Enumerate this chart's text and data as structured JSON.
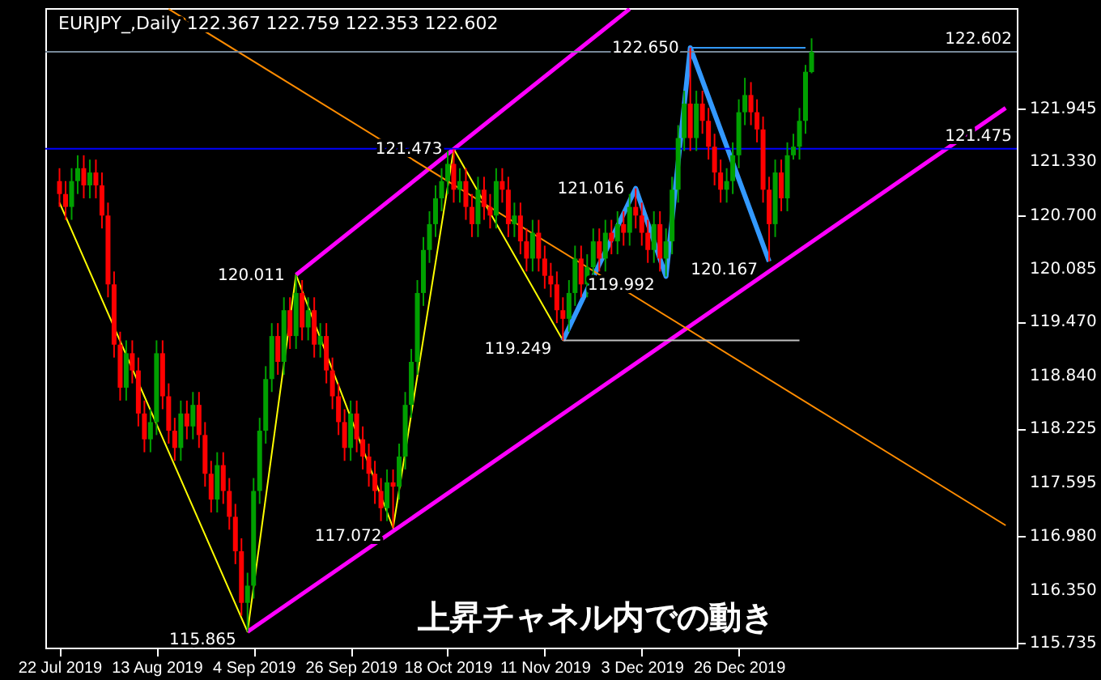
{
  "chart_data": {
    "type": "candlestick",
    "title": "EURJPY_,Daily  122.367 122.759 122.353 122.602",
    "categories": [
      "22 Jul 2019",
      null,
      null,
      null,
      null,
      null,
      null,
      null,
      null,
      null,
      null,
      null,
      null,
      null,
      null,
      null,
      "13 Aug 2019",
      null,
      null,
      null,
      null,
      null,
      null,
      null,
      null,
      null,
      null,
      null,
      null,
      null,
      null,
      null,
      "4 Sep 2019",
      null,
      null,
      null,
      null,
      null,
      null,
      null,
      null,
      null,
      null,
      null,
      null,
      null,
      null,
      null,
      "26 Sep 2019",
      null,
      null,
      null,
      null,
      null,
      null,
      null,
      null,
      null,
      null,
      null,
      null,
      null,
      null,
      null,
      "18 Oct 2019",
      null,
      null,
      null,
      null,
      null,
      null,
      null,
      null,
      null,
      null,
      null,
      null,
      null,
      null,
      null,
      "11 Nov 2019",
      null,
      null,
      null,
      null,
      null,
      null,
      null,
      null,
      null,
      null,
      null,
      null,
      null,
      null,
      null,
      "3 Dec 2019",
      null,
      null,
      null,
      null,
      null,
      null,
      null,
      null,
      null,
      null,
      null,
      null,
      null,
      null,
      null,
      "26 Dec 2019",
      null,
      null,
      null,
      null,
      null,
      null,
      null,
      null,
      null,
      null,
      null,
      null,
      null,
      null,
      null,
      null,
      null,
      null,
      null,
      null,
      null,
      null,
      null,
      null,
      null,
      null,
      null,
      null,
      null,
      null,
      null,
      null,
      null,
      null,
      null,
      null,
      null,
      null,
      null,
      null,
      null,
      null,
      null,
      null
    ],
    "ohlc": [
      [
        121.1,
        121.25,
        120.8,
        120.95
      ],
      [
        120.95,
        121.1,
        120.65,
        120.8
      ],
      [
        120.8,
        121.25,
        120.65,
        121.1
      ],
      [
        121.1,
        121.4,
        120.95,
        121.25
      ],
      [
        121.25,
        121.4,
        120.9,
        121.05
      ],
      [
        121.05,
        121.35,
        120.9,
        121.2
      ],
      [
        121.2,
        121.35,
        120.9,
        121.05
      ],
      [
        121.05,
        121.2,
        120.55,
        120.7
      ],
      [
        120.7,
        120.85,
        119.75,
        119.9
      ],
      [
        119.9,
        120.05,
        119.05,
        119.2
      ],
      [
        119.2,
        119.35,
        118.55,
        118.7
      ],
      [
        118.7,
        119.25,
        118.55,
        119.1
      ],
      [
        119.1,
        119.25,
        118.75,
        118.9
      ],
      [
        118.9,
        119.05,
        118.25,
        118.4
      ],
      [
        118.4,
        118.55,
        117.95,
        118.1
      ],
      [
        118.1,
        118.45,
        117.95,
        118.3
      ],
      [
        118.3,
        119.25,
        118.15,
        119.1
      ],
      [
        119.1,
        119.25,
        118.45,
        118.6
      ],
      [
        118.6,
        118.75,
        118.05,
        118.2
      ],
      [
        118.2,
        118.35,
        117.85,
        118.0
      ],
      [
        118.0,
        118.55,
        117.85,
        118.4
      ],
      [
        118.4,
        118.55,
        118.1,
        118.25
      ],
      [
        118.25,
        118.65,
        118.1,
        118.5
      ],
      [
        118.5,
        118.65,
        118.0,
        118.15
      ],
      [
        118.15,
        118.3,
        117.55,
        117.7
      ],
      [
        117.7,
        117.85,
        117.25,
        117.4
      ],
      [
        117.4,
        117.95,
        117.25,
        117.8
      ],
      [
        117.8,
        117.95,
        117.35,
        117.5
      ],
      [
        117.5,
        117.65,
        117.05,
        117.2
      ],
      [
        117.2,
        117.35,
        116.65,
        116.8
      ],
      [
        116.8,
        116.95,
        116.05,
        116.2
      ],
      [
        116.2,
        116.55,
        115.865,
        116.4
      ],
      [
        116.4,
        117.65,
        116.25,
        117.5
      ],
      [
        117.5,
        118.35,
        117.35,
        118.2
      ],
      [
        118.2,
        118.95,
        118.05,
        118.8
      ],
      [
        118.8,
        119.45,
        118.65,
        119.3
      ],
      [
        119.3,
        119.45,
        118.85,
        119.0
      ],
      [
        119.0,
        119.75,
        118.85,
        119.6
      ],
      [
        119.6,
        119.75,
        119.15,
        119.3
      ],
      [
        119.3,
        120.011,
        119.15,
        119.8
      ],
      [
        119.8,
        119.95,
        119.25,
        119.4
      ],
      [
        119.4,
        119.75,
        119.25,
        119.6
      ],
      [
        119.6,
        119.75,
        119.05,
        119.2
      ],
      [
        119.2,
        119.45,
        119.05,
        119.3
      ],
      [
        119.3,
        119.45,
        118.75,
        118.9
      ],
      [
        118.9,
        119.05,
        118.45,
        118.6
      ],
      [
        118.6,
        118.75,
        118.15,
        118.3
      ],
      [
        118.3,
        118.45,
        117.85,
        118.0
      ],
      [
        118.0,
        118.55,
        117.85,
        118.4
      ],
      [
        118.4,
        118.55,
        117.95,
        118.1
      ],
      [
        118.1,
        118.25,
        117.75,
        117.9
      ],
      [
        117.9,
        118.05,
        117.55,
        117.7
      ],
      [
        117.7,
        117.85,
        117.35,
        117.5
      ],
      [
        117.5,
        117.65,
        117.15,
        117.3
      ],
      [
        117.3,
        117.75,
        117.15,
        117.6
      ],
      [
        117.6,
        117.75,
        117.072,
        117.55
      ],
      [
        117.55,
        118.05,
        117.4,
        117.9
      ],
      [
        117.9,
        118.65,
        117.75,
        118.5
      ],
      [
        118.5,
        119.15,
        118.35,
        119.0
      ],
      [
        119.0,
        119.95,
        118.85,
        119.8
      ],
      [
        119.8,
        120.45,
        119.65,
        120.3
      ],
      [
        120.3,
        120.75,
        120.15,
        120.6
      ],
      [
        120.6,
        121.05,
        120.45,
        120.9
      ],
      [
        120.9,
        121.25,
        120.75,
        121.1
      ],
      [
        121.1,
        121.45,
        120.95,
        121.3
      ],
      [
        121.3,
        121.473,
        120.85,
        121.0
      ],
      [
        121.0,
        121.25,
        120.85,
        121.1
      ],
      [
        121.1,
        121.25,
        120.65,
        120.8
      ],
      [
        120.8,
        120.95,
        120.45,
        120.6
      ],
      [
        120.6,
        121.15,
        120.45,
        121.0
      ],
      [
        121.0,
        121.15,
        120.65,
        120.8
      ],
      [
        120.8,
        120.95,
        120.55,
        120.7
      ],
      [
        120.7,
        121.25,
        120.55,
        121.1
      ],
      [
        121.1,
        121.25,
        120.85,
        121.0
      ],
      [
        121.0,
        121.15,
        120.45,
        120.6
      ],
      [
        120.6,
        120.85,
        120.45,
        120.7
      ],
      [
        120.7,
        120.85,
        120.25,
        120.4
      ],
      [
        120.4,
        120.55,
        120.05,
        120.2
      ],
      [
        120.2,
        120.65,
        120.05,
        120.5
      ],
      [
        120.5,
        120.65,
        120.05,
        120.2
      ],
      [
        120.2,
        120.35,
        119.85,
        120.0
      ],
      [
        120.0,
        120.15,
        119.75,
        119.9
      ],
      [
        119.9,
        120.05,
        119.45,
        119.6
      ],
      [
        119.6,
        119.75,
        119.249,
        119.5
      ],
      [
        119.5,
        119.95,
        119.35,
        119.8
      ],
      [
        119.8,
        120.35,
        119.65,
        120.2
      ],
      [
        120.2,
        120.35,
        119.75,
        119.9
      ],
      [
        119.9,
        120.25,
        119.75,
        120.1
      ],
      [
        120.1,
        120.55,
        119.95,
        120.4
      ],
      [
        120.4,
        120.55,
        120.05,
        120.2
      ],
      [
        120.2,
        120.65,
        120.05,
        120.5
      ],
      [
        120.5,
        120.65,
        120.25,
        120.4
      ],
      [
        120.4,
        120.75,
        120.25,
        120.6
      ],
      [
        120.6,
        120.75,
        120.35,
        120.5
      ],
      [
        120.5,
        120.95,
        120.35,
        120.8
      ],
      [
        120.8,
        121.016,
        120.55,
        120.7
      ],
      [
        120.7,
        120.85,
        120.35,
        120.5
      ],
      [
        120.5,
        120.65,
        120.15,
        120.3
      ],
      [
        120.3,
        120.75,
        120.15,
        120.6
      ],
      [
        120.6,
        120.75,
        120.05,
        120.2
      ],
      [
        120.2,
        120.55,
        119.992,
        120.4
      ],
      [
        120.4,
        121.15,
        120.25,
        121.0
      ],
      [
        121.0,
        121.75,
        120.85,
        121.6
      ],
      [
        121.6,
        122.15,
        121.45,
        122.0
      ],
      [
        122.0,
        122.65,
        121.45,
        121.6
      ],
      [
        121.6,
        122.15,
        121.45,
        122.0
      ],
      [
        122.0,
        122.15,
        121.65,
        121.8
      ],
      [
        121.8,
        121.95,
        121.35,
        121.5
      ],
      [
        121.5,
        121.65,
        121.05,
        121.2
      ],
      [
        121.2,
        121.35,
        120.85,
        121.0
      ],
      [
        121.0,
        121.25,
        120.85,
        121.1
      ],
      [
        121.1,
        121.55,
        120.95,
        121.4
      ],
      [
        121.4,
        122.05,
        121.25,
        121.9
      ],
      [
        121.9,
        122.3,
        121.75,
        122.1
      ],
      [
        122.1,
        122.25,
        121.75,
        121.9
      ],
      [
        121.9,
        122.05,
        121.55,
        121.7
      ],
      [
        121.7,
        121.85,
        120.85,
        121.0
      ],
      [
        121.0,
        121.15,
        120.167,
        120.6
      ],
      [
        120.6,
        121.35,
        120.45,
        121.2
      ],
      [
        121.2,
        121.35,
        120.75,
        120.9
      ],
      [
        120.9,
        121.55,
        120.75,
        121.4
      ],
      [
        121.4,
        121.65,
        121.35,
        121.5
      ],
      [
        121.5,
        121.95,
        121.35,
        121.8
      ],
      [
        121.8,
        122.45,
        121.65,
        122.37
      ],
      [
        122.367,
        122.759,
        122.353,
        122.602
      ],
      null,
      null,
      null,
      null,
      null,
      null,
      null,
      null,
      null,
      null,
      null,
      null,
      null,
      null,
      null,
      null,
      null,
      null,
      null,
      null,
      null,
      null,
      null,
      null,
      null,
      null,
      null,
      null,
      null,
      null,
      null,
      null
    ],
    "colors": [
      "#ff0000",
      "#ff0000",
      "#00a000",
      "#00a000",
      "#ff0000",
      "#00a000",
      "#ff0000",
      "#ff0000",
      "#ff0000",
      "#ff0000",
      "#ff0000",
      "#00a000",
      "#ff0000",
      "#ff0000",
      "#ff0000",
      "#00a000",
      "#00a000",
      "#ff0000",
      "#ff0000",
      "#ff0000",
      "#00a000",
      "#ff0000",
      "#00a000",
      "#ff0000",
      "#ff0000",
      "#ff0000",
      "#00a000",
      "#ff0000",
      "#ff0000",
      "#ff0000",
      "#ff0000",
      "#00a000",
      "#00a000",
      "#00a000",
      "#00a000",
      "#00a000",
      "#ff0000",
      "#00a000",
      "#ff0000",
      "#00a000",
      "#ff0000",
      "#00a000",
      "#ff0000",
      "#00a000",
      "#ff0000",
      "#ff0000",
      "#ff0000",
      "#ff0000",
      "#00a000",
      "#ff0000",
      "#ff0000",
      "#ff0000",
      "#ff0000",
      "#ff0000",
      "#00a000",
      "#ff0000",
      "#00a000",
      "#00a000",
      "#00a000",
      "#00a000",
      "#00a000",
      "#00a000",
      "#00a000",
      "#00a000",
      "#00a000",
      "#ff0000",
      "#00a000",
      "#ff0000",
      "#ff0000",
      "#00a000",
      "#ff0000",
      "#ff0000",
      "#00a000",
      "#ff0000",
      "#ff0000",
      "#00a000",
      "#ff0000",
      "#ff0000",
      "#00a000",
      "#ff0000",
      "#ff0000",
      "#ff0000",
      "#ff0000",
      "#ff0000",
      "#00a000",
      "#00a000",
      "#ff0000",
      "#00a000",
      "#00a000",
      "#ff0000",
      "#00a000",
      "#ff0000",
      "#00a000",
      "#ff0000",
      "#00a000",
      "#ff0000",
      "#ff0000",
      "#ff0000",
      "#00a000",
      "#ff0000",
      "#00a000",
      "#00a000",
      "#00a000",
      "#00a000",
      "#ff0000",
      "#00a000",
      "#ff0000",
      "#ff0000",
      "#ff0000",
      "#ff0000",
      "#00a000",
      "#00a000",
      "#00a000",
      "#00a000",
      "#ff0000",
      "#ff0000",
      "#ff0000",
      "#ff0000",
      "#00a000",
      "#ff0000",
      "#00a000",
      "#00a000",
      "#00a000",
      "#00a000",
      "#00a000",
      null,
      null,
      null,
      null,
      null,
      null,
      null,
      null,
      null,
      null,
      null,
      null,
      null,
      null,
      null,
      null,
      null,
      null,
      null,
      null,
      null,
      null,
      null,
      null,
      null,
      null,
      null,
      null,
      null,
      null,
      null,
      null
    ],
    "series": [
      {
        "type": "line",
        "color": "#ffff00",
        "values": [
          120.85,
          null,
          null,
          null,
          null,
          null,
          null,
          null,
          null,
          null,
          null,
          null,
          null,
          null,
          null,
          null,
          null,
          null,
          null,
          null,
          null,
          null,
          null,
          null,
          null,
          null,
          null,
          null,
          null,
          null,
          null,
          115.865,
          null,
          null,
          null,
          null,
          null,
          null,
          null,
          120.011,
          null,
          null,
          null,
          null,
          null,
          null,
          null,
          null,
          null,
          null,
          null,
          null,
          null,
          null,
          null,
          117.072,
          null,
          null,
          null,
          null,
          null,
          null,
          null,
          null,
          null,
          121.473,
          null,
          null,
          null,
          null,
          null,
          null,
          null,
          null,
          null,
          null,
          null,
          null,
          null,
          null,
          null,
          null,
          null,
          119.249,
          null,
          null,
          null,
          null,
          null,
          null,
          null,
          null,
          null,
          null,
          null,
          null,
          null,
          null,
          null,
          null,
          null,
          null,
          null,
          null,
          null,
          null,
          null,
          null,
          null,
          null,
          null,
          null,
          null,
          null,
          null,
          null,
          null,
          null,
          null,
          null,
          null,
          null,
          null,
          null,
          null,
          null,
          null,
          null,
          null,
          null,
          null,
          null,
          null,
          null,
          null,
          null,
          null,
          null,
          null,
          null,
          null,
          null,
          null,
          null,
          null,
          null,
          null,
          null,
          null,
          null,
          null,
          null,
          null,
          null,
          null,
          null,
          null
        ],
        "value_labels": [
          null,
          null,
          null,
          null,
          null,
          null,
          null,
          null,
          null,
          null,
          null,
          null,
          null,
          null,
          null,
          null,
          null,
          null,
          null,
          null,
          null,
          null,
          null,
          null,
          null,
          null,
          null,
          null,
          null,
          null,
          null,
          "115.865",
          null,
          null,
          null,
          null,
          null,
          null,
          null,
          "120.011",
          null,
          null,
          null,
          null,
          null,
          null,
          null,
          null,
          null,
          null,
          null,
          null,
          null,
          null,
          null,
          "117.072",
          null,
          null,
          null,
          null,
          null,
          null,
          null,
          null,
          null,
          "121.473",
          null,
          null,
          null,
          null,
          null,
          null,
          null,
          null,
          null,
          null,
          null,
          null,
          null,
          null,
          null,
          null,
          null,
          "119.249",
          null,
          null,
          null,
          null,
          null,
          null,
          null,
          null,
          null,
          null,
          null,
          null,
          null,
          null,
          null,
          null,
          null,
          null,
          null,
          null,
          null,
          null,
          null,
          null,
          null,
          null,
          null,
          null,
          null,
          null,
          null,
          null,
          null,
          null,
          null,
          null,
          null,
          null,
          null,
          null,
          null,
          null,
          null,
          null,
          null,
          null,
          null,
          null,
          null,
          null,
          null,
          null,
          null,
          null,
          null,
          null,
          null,
          null,
          null,
          null,
          null,
          null,
          null,
          null,
          null,
          null,
          null,
          null,
          null,
          null,
          null,
          null,
          null
        ]
      },
      {
        "type": "line",
        "color": "#3399ff",
        "values": [
          null,
          null,
          null,
          null,
          null,
          null,
          null,
          null,
          null,
          null,
          null,
          null,
          null,
          null,
          null,
          null,
          null,
          null,
          null,
          null,
          null,
          null,
          null,
          null,
          null,
          null,
          null,
          null,
          null,
          null,
          null,
          null,
          null,
          null,
          null,
          null,
          null,
          null,
          null,
          null,
          null,
          null,
          null,
          null,
          null,
          null,
          null,
          null,
          null,
          null,
          null,
          null,
          null,
          null,
          null,
          null,
          null,
          null,
          null,
          null,
          null,
          null,
          null,
          null,
          null,
          null,
          null,
          null,
          null,
          null,
          null,
          null,
          null,
          null,
          null,
          null,
          null,
          null,
          null,
          null,
          null,
          null,
          null,
          119.249,
          null,
          null,
          null,
          null,
          null,
          null,
          null,
          null,
          null,
          null,
          null,
          121.016,
          null,
          null,
          null,
          null,
          119.992,
          null,
          null,
          null,
          122.65,
          null,
          null,
          null,
          null,
          null,
          null,
          null,
          null,
          null,
          null,
          null,
          null,
          120.167,
          null,
          null,
          null,
          null,
          null,
          null,
          null,
          null,
          null,
          null,
          null,
          null,
          null,
          null,
          null,
          null,
          null,
          null,
          null,
          null,
          null,
          null,
          null,
          null,
          null,
          null,
          null,
          null,
          null,
          null,
          null,
          null,
          null,
          null,
          null,
          null,
          null,
          null,
          null
        ],
        "value_labels": [
          null,
          null,
          null,
          null,
          null,
          null,
          null,
          null,
          null,
          null,
          null,
          null,
          null,
          null,
          null,
          null,
          null,
          null,
          null,
          null,
          null,
          null,
          null,
          null,
          null,
          null,
          null,
          null,
          null,
          null,
          null,
          null,
          null,
          null,
          null,
          null,
          null,
          null,
          null,
          null,
          null,
          null,
          null,
          null,
          null,
          null,
          null,
          null,
          null,
          null,
          null,
          null,
          null,
          null,
          null,
          null,
          null,
          null,
          null,
          null,
          null,
          null,
          null,
          null,
          null,
          null,
          null,
          null,
          null,
          null,
          null,
          null,
          null,
          null,
          null,
          null,
          null,
          null,
          null,
          null,
          null,
          null,
          null,
          null,
          null,
          null,
          null,
          null,
          null,
          null,
          null,
          null,
          null,
          null,
          null,
          "121.016",
          null,
          null,
          null,
          null,
          "119.992",
          null,
          null,
          null,
          "122.650",
          null,
          null,
          null,
          null,
          null,
          null,
          null,
          null,
          null,
          null,
          null,
          null,
          "120.167",
          null,
          null,
          null,
          null,
          null,
          null,
          null,
          null,
          null,
          null,
          null,
          null,
          null,
          null,
          null,
          null,
          null,
          null,
          null,
          null,
          null,
          null,
          null,
          null,
          null,
          null,
          null,
          null,
          null,
          null,
          null,
          null,
          null,
          null,
          null,
          null,
          null,
          null,
          null
        ]
      },
      {
        "type": "line",
        "color": "#ff00ff",
        "values": [
          null,
          null,
          null,
          null,
          null,
          null,
          null,
          null,
          null,
          null,
          null,
          null,
          null,
          null,
          null,
          null,
          null,
          null,
          null,
          null,
          null,
          null,
          null,
          null,
          null,
          null,
          null,
          null,
          null,
          null,
          null,
          115.865,
          null,
          null,
          null,
          null,
          null,
          null,
          null,
          null,
          null,
          null,
          null,
          null,
          null,
          null,
          null,
          null,
          null,
          null,
          null,
          null,
          null,
          null,
          null,
          null,
          null,
          null,
          null,
          null,
          null,
          null,
          null,
          null,
          null,
          null,
          null,
          null,
          null,
          null,
          null,
          null,
          null,
          null,
          null,
          null,
          null,
          null,
          null,
          null,
          null,
          null,
          null,
          null,
          null,
          null,
          null,
          null,
          null,
          null,
          null,
          null,
          null,
          null,
          null,
          null,
          null,
          null,
          null,
          null,
          null,
          null,
          null,
          null,
          null,
          null,
          null,
          null,
          null,
          null,
          null,
          null,
          null,
          null,
          null,
          null,
          null,
          null,
          null,
          null,
          null,
          null,
          null,
          null,
          null,
          null,
          null,
          null,
          null,
          null,
          null,
          null,
          null,
          null,
          null,
          null,
          null,
          null,
          null,
          null,
          null,
          null,
          null,
          null,
          null,
          null,
          null,
          null,
          null,
          null,
          null,
          null,
          null,
          null,
          null,
          null,
          121.95
        ]
      },
      {
        "type": "line",
        "color": "#ff00ff",
        "values": [
          null,
          null,
          null,
          null,
          null,
          null,
          null,
          null,
          null,
          null,
          null,
          null,
          null,
          null,
          null,
          null,
          null,
          null,
          null,
          null,
          null,
          null,
          null,
          null,
          null,
          null,
          null,
          null,
          null,
          null,
          null,
          null,
          null,
          null,
          null,
          null,
          null,
          null,
          null,
          120.011,
          null,
          null,
          null,
          null,
          null,
          null,
          null,
          null,
          null,
          null,
          null,
          null,
          null,
          null,
          null,
          null,
          null,
          null,
          null,
          null,
          null,
          null,
          null,
          null,
          null,
          null,
          null,
          null,
          null,
          null,
          null,
          null,
          null,
          null,
          null,
          null,
          null,
          null,
          null,
          null,
          null,
          null,
          null,
          null,
          null,
          null,
          null,
          null,
          null,
          null,
          null,
          null,
          null,
          null,
          123.1,
          null,
          null,
          null,
          null,
          null,
          null,
          null,
          null,
          null,
          null,
          null,
          null,
          null,
          null,
          null,
          null,
          null,
          null,
          null,
          null,
          null,
          null,
          null,
          null,
          null,
          null,
          null,
          null,
          null,
          null,
          null,
          null,
          null,
          null,
          null,
          null,
          null,
          null,
          null,
          null,
          null,
          null,
          null,
          null,
          null,
          null,
          null,
          null,
          null,
          null,
          null,
          null,
          null,
          null,
          null,
          null,
          null,
          null,
          null,
          null,
          null,
          null
        ]
      },
      {
        "type": "line",
        "color": "#ff8c00",
        "values": [
          null,
          null,
          null,
          null,
          null,
          null,
          null,
          null,
          null,
          null,
          null,
          null,
          null,
          null,
          null,
          null,
          null,
          null,
          123.1,
          null,
          null,
          null,
          null,
          null,
          null,
          null,
          null,
          null,
          null,
          null,
          null,
          null,
          null,
          null,
          null,
          null,
          null,
          null,
          null,
          null,
          null,
          null,
          null,
          null,
          null,
          null,
          null,
          null,
          null,
          null,
          null,
          null,
          null,
          null,
          null,
          null,
          null,
          null,
          null,
          null,
          null,
          null,
          null,
          null,
          null,
          null,
          null,
          null,
          null,
          null,
          null,
          null,
          null,
          null,
          null,
          null,
          null,
          null,
          null,
          null,
          null,
          null,
          null,
          null,
          null,
          null,
          null,
          null,
          null,
          null,
          null,
          null,
          null,
          null,
          null,
          null,
          null,
          null,
          null,
          null,
          null,
          null,
          null,
          null,
          null,
          null,
          null,
          null,
          null,
          null,
          null,
          null,
          null,
          null,
          null,
          null,
          null,
          null,
          null,
          null,
          null,
          null,
          null,
          null,
          null,
          null,
          null,
          null,
          null,
          null,
          null,
          null,
          null,
          null,
          null,
          null,
          null,
          null,
          null,
          null,
          null,
          null,
          null,
          null,
          null,
          null,
          null,
          null,
          null,
          null,
          null,
          null,
          null,
          null,
          null,
          null,
          117.1
        ]
      },
      {
        "type": "line",
        "color": "#3399ff",
        "values": [
          null,
          null,
          null,
          null,
          null,
          null,
          null,
          null,
          null,
          null,
          null,
          null,
          null,
          null,
          null,
          null,
          null,
          null,
          null,
          null,
          null,
          null,
          null,
          null,
          null,
          null,
          null,
          null,
          null,
          null,
          null,
          null,
          null,
          null,
          null,
          null,
          null,
          null,
          null,
          null,
          null,
          null,
          null,
          null,
          null,
          null,
          null,
          null,
          null,
          null,
          null,
          null,
          null,
          null,
          null,
          null,
          null,
          null,
          null,
          null,
          null,
          null,
          null,
          null,
          null,
          null,
          null,
          null,
          null,
          null,
          null,
          null,
          null,
          null,
          null,
          null,
          null,
          null,
          null,
          null,
          null,
          null,
          null,
          null,
          null,
          null,
          null,
          null,
          null,
          null,
          null,
          null,
          null,
          null,
          null,
          null,
          null,
          null,
          null,
          null,
          null,
          null,
          null,
          null,
          122.65,
          null,
          null,
          null,
          null,
          null,
          null,
          null,
          null,
          null,
          null,
          null,
          null,
          null,
          null,
          null,
          null,
          null,
          null,
          122.65,
          null,
          null,
          null,
          null,
          null,
          null,
          null,
          null,
          null,
          null,
          null,
          null,
          null,
          null,
          null,
          null,
          null,
          null,
          null,
          null,
          null,
          null,
          null,
          null,
          null,
          null,
          null,
          null,
          null,
          null,
          null,
          null,
          null
        ]
      },
      {
        "type": "line",
        "color": "#c0c0c0",
        "values": [
          null,
          null,
          null,
          null,
          null,
          null,
          null,
          null,
          null,
          null,
          null,
          null,
          null,
          null,
          null,
          null,
          null,
          null,
          null,
          null,
          null,
          null,
          null,
          null,
          null,
          null,
          null,
          null,
          null,
          null,
          null,
          null,
          null,
          null,
          null,
          null,
          null,
          null,
          null,
          null,
          null,
          null,
          null,
          null,
          null,
          null,
          null,
          null,
          null,
          null,
          null,
          null,
          null,
          null,
          null,
          null,
          null,
          null,
          null,
          null,
          null,
          null,
          null,
          null,
          null,
          null,
          null,
          null,
          null,
          null,
          null,
          null,
          null,
          null,
          null,
          null,
          null,
          null,
          null,
          null,
          null,
          null,
          null,
          119.249,
          null,
          null,
          null,
          null,
          null,
          null,
          null,
          null,
          null,
          null,
          null,
          null,
          null,
          null,
          null,
          null,
          null,
          null,
          null,
          null,
          null,
          null,
          null,
          null,
          null,
          null,
          null,
          null,
          null,
          null,
          null,
          null,
          null,
          null,
          null,
          null,
          null,
          null,
          119.249,
          null,
          null,
          null,
          null,
          null,
          null,
          null,
          null,
          null,
          null,
          null,
          null,
          null,
          null,
          null,
          null,
          null,
          null,
          null,
          null,
          null,
          null,
          null,
          null,
          null,
          null,
          null,
          null,
          null,
          null,
          null,
          null,
          null,
          null
        ]
      }
    ],
    "ylim": [
      115.68,
      123.11
    ],
    "yticks": [
      115.735,
      {
        "value": 116.35,
        "label": "116.350"
      },
      {
        "value": 116.98,
        "label": "116.980"
      },
      117.595,
      118.225,
      {
        "value": 118.84,
        "label": "118.840"
      },
      {
        "value": 119.47,
        "label": "119.470"
      },
      120.085,
      {
        "value": 120.7,
        "label": "120.700"
      },
      {
        "value": 121.33,
        "label": "121.330"
      },
      121.945
    ],
    "ref_lines": [
      {
        "axis": "y",
        "value": 122.602,
        "label": "122.602",
        "color": "#778899"
      },
      {
        "axis": "y",
        "value": 121.475,
        "label": "121.475",
        "color": "#0000ff"
      }
    ],
    "annotations": [
      "上昇チャネル内での動き"
    ]
  }
}
